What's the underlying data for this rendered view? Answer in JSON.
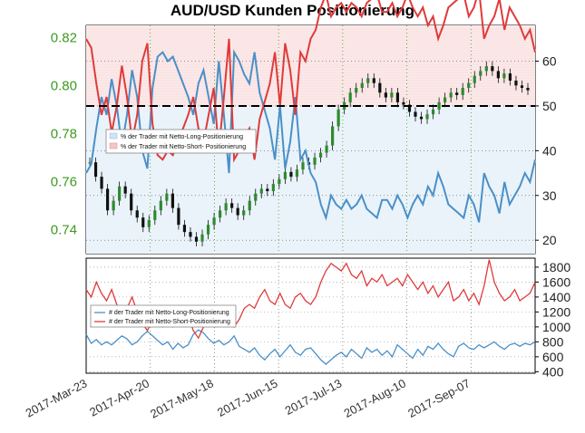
{
  "title": "AUD/USD Kunden Positionierung",
  "chart_data": [
    {
      "type": "line",
      "panel": "price-and-percent",
      "left_axis": {
        "ticks": [
          "0.74",
          "0.76",
          "0.78",
          "0.80",
          "0.82"
        ],
        "ylim": [
          0.73,
          0.825
        ]
      },
      "right_axis": {
        "ticks": [
          "20",
          "30",
          "40",
          "50",
          "60"
        ],
        "ylim": [
          17,
          68
        ]
      },
      "reference_line": 50,
      "legend": {
        "placement": "left",
        "entries": [
          "% der Trader mit Netto-Long-Positionierung",
          "% der Trader mit Netto-Short- Positionierung"
        ]
      },
      "series": [
        {
          "name": "% der Trader mit Netto-Long-Positionierung",
          "color": "#4a90c8",
          "x": [
            0,
            2,
            4,
            6,
            8,
            10,
            12,
            14,
            16,
            18,
            20,
            22,
            24,
            26,
            28,
            30,
            32,
            34,
            36,
            38,
            40,
            42,
            44,
            46,
            48,
            50,
            52,
            54,
            56,
            58,
            60,
            62,
            64,
            66,
            68,
            70,
            72,
            74,
            76,
            78,
            80,
            82,
            84,
            86,
            88,
            90,
            92,
            94,
            96,
            98,
            100,
            102,
            104,
            106,
            108,
            110,
            112,
            114,
            116,
            118,
            120,
            122,
            124,
            126,
            128,
            130,
            132,
            134,
            136,
            138,
            140,
            142,
            144,
            146,
            148,
            150,
            152,
            154,
            156,
            158,
            160,
            162,
            164,
            166,
            168,
            170,
            172,
            174,
            176
          ],
          "values": [
            35,
            37,
            45,
            52,
            48,
            56,
            50,
            41,
            48,
            58,
            52,
            40,
            36,
            54,
            61,
            62,
            60,
            61,
            58,
            55,
            52,
            48,
            55,
            58,
            52,
            46,
            60,
            48,
            35,
            62,
            60,
            57,
            55,
            62,
            53,
            49,
            45,
            38,
            50,
            36,
            42,
            52,
            38,
            40,
            35,
            33,
            28,
            25,
            30,
            28,
            27,
            29,
            27,
            28,
            30,
            27,
            26,
            25,
            29,
            29,
            27,
            30,
            28,
            25,
            28,
            30,
            28,
            32,
            30,
            35,
            32,
            28,
            27,
            26,
            25,
            30,
            28,
            24,
            35,
            32,
            30,
            26,
            33,
            28,
            30,
            32,
            35,
            33,
            38
          ]
        },
        {
          "name": "% der Trader mit Netto-Short- Positionierung",
          "color": "#e03a3a",
          "x": [
            0,
            2,
            4,
            6,
            8,
            10,
            12,
            14,
            16,
            18,
            20,
            22,
            24,
            26,
            28,
            30,
            32,
            34,
            36,
            38,
            40,
            42,
            44,
            46,
            48,
            50,
            52,
            54,
            56,
            58,
            60,
            62,
            64,
            66,
            68,
            70,
            72,
            74,
            76,
            78,
            80,
            82,
            84,
            86,
            88,
            90,
            92,
            94,
            96,
            98,
            100,
            102,
            104,
            106,
            108,
            110,
            112,
            114,
            116,
            118,
            120,
            122,
            124,
            126,
            128,
            130,
            132,
            134,
            136,
            138,
            140,
            142,
            144,
            146,
            148,
            150,
            152,
            154,
            156,
            158,
            160,
            162,
            164,
            166,
            168,
            170,
            172,
            174,
            176
          ],
          "values": [
            65,
            63,
            55,
            48,
            52,
            44,
            50,
            59,
            52,
            42,
            48,
            60,
            64,
            46,
            39,
            38,
            40,
            39,
            42,
            45,
            48,
            52,
            45,
            42,
            48,
            54,
            40,
            52,
            65,
            38,
            40,
            43,
            45,
            38,
            47,
            51,
            55,
            62,
            50,
            64,
            58,
            48,
            62,
            60,
            65,
            67,
            72,
            75,
            70,
            72,
            73,
            71,
            73,
            72,
            70,
            73,
            74,
            75,
            71,
            71,
            73,
            70,
            72,
            75,
            72,
            70,
            72,
            68,
            70,
            65,
            68,
            72,
            73,
            74,
            75,
            70,
            72,
            76,
            65,
            68,
            70,
            74,
            67,
            72,
            70,
            68,
            65,
            67,
            62
          ]
        }
      ],
      "price_close": [
        0.768,
        0.762,
        0.757,
        0.748,
        0.752,
        0.758,
        0.755,
        0.748,
        0.745,
        0.741,
        0.744,
        0.748,
        0.752,
        0.755,
        0.749,
        0.742,
        0.739,
        0.737,
        0.735,
        0.738,
        0.742,
        0.745,
        0.748,
        0.751,
        0.749,
        0.746,
        0.748,
        0.752,
        0.755,
        0.757,
        0.756,
        0.759,
        0.761,
        0.764,
        0.762,
        0.765,
        0.768,
        0.767,
        0.77,
        0.772,
        0.775,
        0.783,
        0.79,
        0.793,
        0.797,
        0.799,
        0.801,
        0.803,
        0.801,
        0.797,
        0.795,
        0.797,
        0.793,
        0.792,
        0.789,
        0.787,
        0.786,
        0.788,
        0.79,
        0.793,
        0.795,
        0.797,
        0.796,
        0.799,
        0.801,
        0.804,
        0.806,
        0.808,
        0.806,
        0.803,
        0.805,
        0.802,
        0.8,
        0.799,
        0.798
      ]
    },
    {
      "type": "line",
      "panel": "trader-counts",
      "right_axis": {
        "ticks": [
          "400",
          "600",
          "800",
          "1000",
          "1200",
          "1400",
          "1600",
          "1800"
        ],
        "ylim": [
          380,
          1920
        ]
      },
      "legend": {
        "placement": "left",
        "entries": [
          "# der Trader mit Netto-Long-Positionierung",
          "# der Trader mit Netto-Short-Positionierung"
        ]
      },
      "x_ticks": [
        "2017-Mar-23",
        "2017-Apr-20",
        "2017-May-18",
        "2017-Jun-15",
        "2017-Jul-13",
        "2017-Aug-10",
        "2017-Sep-07"
      ],
      "series": [
        {
          "name": "# der Trader mit Netto-Long-Positionierung",
          "color": "#4a90c8",
          "values": [
            900,
            780,
            830,
            760,
            800,
            760,
            820,
            880,
            840,
            760,
            800,
            880,
            940,
            880,
            820,
            760,
            800,
            700,
            780,
            720,
            760,
            900,
            960,
            920,
            840,
            780,
            820,
            760,
            800,
            880,
            740,
            700,
            660,
            720,
            620,
            560,
            640,
            700,
            600,
            680,
            760,
            660,
            620,
            700,
            720,
            640,
            560,
            500,
            560,
            620,
            660,
            600,
            700,
            640,
            580,
            720,
            660,
            700,
            620,
            680,
            600,
            760,
            700,
            640,
            580,
            700,
            620,
            740,
            700,
            780,
            700,
            640,
            600,
            740,
            780,
            720,
            700,
            760,
            720,
            760,
            800,
            740,
            700,
            760,
            780,
            740,
            780,
            760,
            800
          ]
        },
        {
          "name": "# der Trader mit Netto-Short-Positionierung",
          "color": "#e03a3a",
          "values": [
            1500,
            1400,
            1600,
            1450,
            1350,
            1500,
            1300,
            1150,
            1250,
            1400,
            1200,
            1050,
            950,
            1100,
            1050,
            1000,
            1150,
            1000,
            1050,
            1100,
            1150,
            950,
            850,
            1000,
            1100,
            1150,
            1050,
            1150,
            1200,
            1000,
            1100,
            1250,
            1300,
            1250,
            1400,
            1500,
            1350,
            1300,
            1450,
            1300,
            1250,
            1400,
            1450,
            1350,
            1300,
            1400,
            1600,
            1750,
            1850,
            1800,
            1750,
            1850,
            1700,
            1650,
            1750,
            1550,
            1650,
            1600,
            1700,
            1550,
            1600,
            1650,
            1550,
            1700,
            1600,
            1500,
            1600,
            1450,
            1550,
            1400,
            1500,
            1600,
            1350,
            1400,
            1500,
            1350,
            1450,
            1300,
            1550,
            1900,
            1600,
            1450,
            1350,
            1400,
            1500,
            1350,
            1400,
            1450,
            1600
          ]
        }
      ]
    }
  ]
}
